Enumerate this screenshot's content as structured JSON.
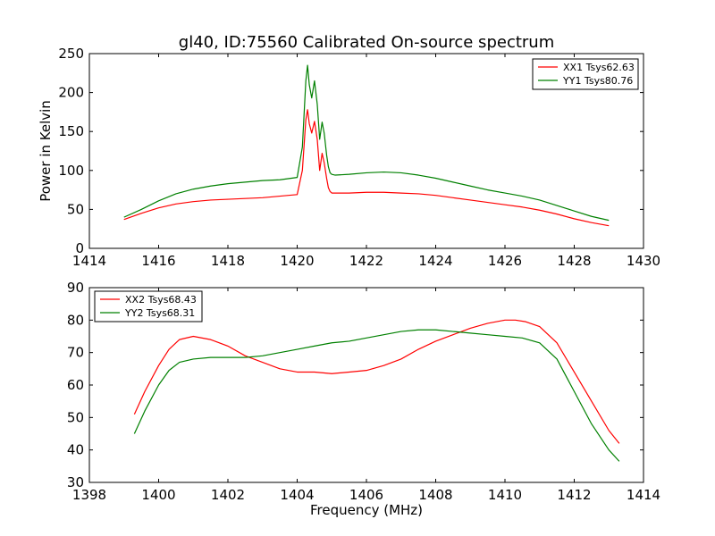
{
  "figure": {
    "title": "gl40, ID:75560 Calibrated On-source spectrum",
    "background": "#ffffff"
  },
  "chart_data": [
    {
      "type": "line",
      "title": "gl40, ID:75560 Calibrated On-source spectrum",
      "xlabel": "",
      "ylabel": "Power in Kelvin",
      "xlim": [
        1414,
        1430
      ],
      "ylim": [
        0,
        250
      ],
      "xticks": [
        1414,
        1416,
        1418,
        1420,
        1422,
        1424,
        1426,
        1428,
        1430
      ],
      "yticks": [
        0,
        50,
        100,
        150,
        200,
        250
      ],
      "grid": false,
      "legend_position": "top-right",
      "series": [
        {
          "name": "XX1 Tsys62.63",
          "color": "#ff0000",
          "x": [
            1415.0,
            1415.5,
            1416.0,
            1416.5,
            1417.0,
            1417.5,
            1418.0,
            1418.5,
            1419.0,
            1419.5,
            1420.0,
            1420.15,
            1420.25,
            1420.3,
            1420.35,
            1420.42,
            1420.5,
            1420.58,
            1420.65,
            1420.72,
            1420.78,
            1420.85,
            1420.9,
            1420.95,
            1421.0,
            1421.1,
            1421.5,
            1422.0,
            1422.5,
            1423.0,
            1423.5,
            1424.0,
            1424.5,
            1425.0,
            1425.5,
            1426.0,
            1426.5,
            1427.0,
            1427.5,
            1428.0,
            1428.5,
            1429.0
          ],
          "y": [
            37,
            45,
            52,
            57,
            60,
            62,
            63,
            64,
            65,
            67,
            69,
            100,
            165,
            178,
            160,
            148,
            163,
            140,
            100,
            122,
            110,
            90,
            78,
            73,
            71,
            71,
            71,
            72,
            72,
            71,
            70,
            68,
            65,
            62,
            59,
            56,
            53,
            49,
            44,
            38,
            33,
            29
          ]
        },
        {
          "name": "YY1 Tsys80.76",
          "color": "#008000",
          "x": [
            1415.0,
            1415.5,
            1416.0,
            1416.5,
            1417.0,
            1417.5,
            1418.0,
            1418.5,
            1419.0,
            1419.5,
            1420.0,
            1420.15,
            1420.25,
            1420.3,
            1420.35,
            1420.42,
            1420.5,
            1420.58,
            1420.65,
            1420.72,
            1420.78,
            1420.85,
            1420.9,
            1420.95,
            1421.0,
            1421.1,
            1421.5,
            1422.0,
            1422.5,
            1423.0,
            1423.5,
            1424.0,
            1424.5,
            1425.0,
            1425.5,
            1426.0,
            1426.5,
            1427.0,
            1427.5,
            1428.0,
            1428.5,
            1429.0
          ],
          "y": [
            40,
            50,
            61,
            70,
            76,
            80,
            83,
            85,
            87,
            88,
            91,
            130,
            215,
            235,
            210,
            193,
            215,
            185,
            140,
            162,
            148,
            120,
            105,
            97,
            95,
            94,
            95,
            97,
            98,
            97,
            94,
            90,
            85,
            80,
            75,
            71,
            67,
            62,
            55,
            48,
            41,
            36
          ]
        }
      ]
    },
    {
      "type": "line",
      "title": "",
      "xlabel": "Frequency (MHz)",
      "ylabel": "",
      "xlim": [
        1398,
        1414
      ],
      "ylim": [
        30,
        90
      ],
      "xticks": [
        1398,
        1400,
        1402,
        1404,
        1406,
        1408,
        1410,
        1412,
        1414
      ],
      "yticks": [
        30,
        40,
        50,
        60,
        70,
        80,
        90
      ],
      "grid": false,
      "legend_position": "top-left",
      "series": [
        {
          "name": "XX2 Tsys68.43",
          "color": "#ff0000",
          "x": [
            1399.3,
            1399.6,
            1400.0,
            1400.3,
            1400.6,
            1401.0,
            1401.5,
            1402.0,
            1402.5,
            1403.0,
            1403.5,
            1404.0,
            1404.5,
            1405.0,
            1405.5,
            1406.0,
            1406.5,
            1407.0,
            1407.5,
            1408.0,
            1408.5,
            1409.0,
            1409.5,
            1410.0,
            1410.3,
            1410.6,
            1411.0,
            1411.5,
            1412.0,
            1412.5,
            1413.0,
            1413.3
          ],
          "y": [
            51,
            58,
            66,
            71,
            74,
            75,
            74,
            72,
            69,
            67,
            65,
            64,
            64,
            63.5,
            64,
            64.5,
            66,
            68,
            71,
            73.5,
            75.5,
            77.5,
            79,
            80,
            80,
            79.5,
            78,
            73,
            64,
            55,
            46,
            42
          ]
        },
        {
          "name": "YY2 Tsys68.31",
          "color": "#008000",
          "x": [
            1399.3,
            1399.6,
            1400.0,
            1400.3,
            1400.6,
            1401.0,
            1401.5,
            1402.0,
            1402.5,
            1403.0,
            1403.5,
            1404.0,
            1404.5,
            1405.0,
            1405.5,
            1406.0,
            1406.5,
            1407.0,
            1407.5,
            1408.0,
            1408.5,
            1409.0,
            1409.5,
            1410.0,
            1410.5,
            1411.0,
            1411.5,
            1412.0,
            1412.5,
            1413.0,
            1413.3
          ],
          "y": [
            45,
            52,
            60,
            64.5,
            67,
            68,
            68.5,
            68.5,
            68.5,
            69,
            70,
            71,
            72,
            73,
            73.5,
            74.5,
            75.5,
            76.5,
            77,
            77,
            76.5,
            76,
            75.5,
            75,
            74.5,
            73,
            68,
            58,
            48,
            40,
            36.5
          ]
        }
      ]
    }
  ]
}
